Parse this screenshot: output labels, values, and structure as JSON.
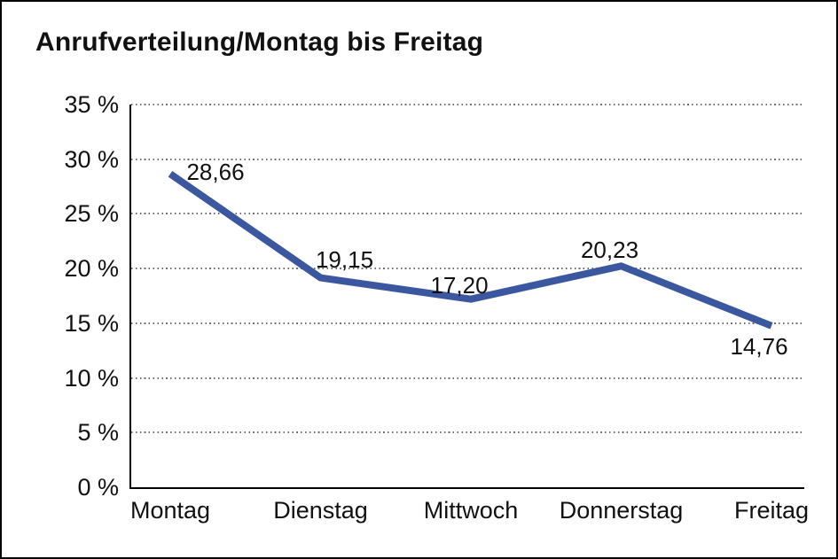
{
  "chart": {
    "title": "Anrufverteilung/Montag bis Freitag"
  },
  "chart_data": {
    "type": "line",
    "title": "Anrufverteilung/Montag bis Freitag",
    "categories": [
      "Montag",
      "Dienstag",
      "Mittwoch",
      "Donnerstag",
      "Freitag"
    ],
    "values": [
      28.66,
      19.15,
      17.2,
      20.23,
      14.76
    ],
    "data_labels": [
      "28,66",
      "19,15",
      "17,20",
      "20,23",
      "14,76"
    ],
    "xlabel": "",
    "ylabel": "",
    "ylim": [
      0,
      35
    ],
    "ytick_step": 5,
    "ytick_labels": [
      "0 %",
      "5 %",
      "10 %",
      "15 %",
      "20 %",
      "25 %",
      "30 %",
      "35 %"
    ],
    "grid": "horizontal-dotted",
    "legend_position": "none",
    "line_color": "#3A57A0",
    "text_color": "#111111",
    "axis_color": "#000000",
    "grid_color": "#6F6F6F"
  }
}
